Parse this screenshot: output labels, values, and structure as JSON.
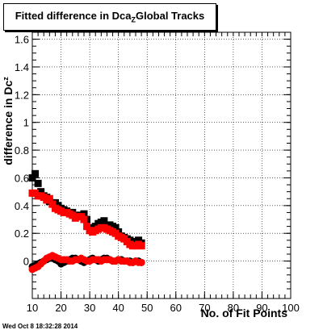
{
  "chart_data": {
    "type": "scatter",
    "title": "Fitted difference in Dca_{Z}Global Tracks",
    "title_main": "Fitted difference in Dca",
    "title_sub": "Z",
    "title_tail": "Global Tracks",
    "xlabel": "No. of Fit Points",
    "ylabel": "difference in Dc",
    "ylabel_sub": "z",
    "xlim": [
      10,
      100
    ],
    "ylim": [
      -0.27,
      1.65
    ],
    "x_ticks": [
      10,
      20,
      30,
      40,
      50,
      60,
      70,
      80,
      90,
      100
    ],
    "y_ticks": [
      0,
      0.2,
      0.4,
      0.6,
      0.8,
      1,
      1.2,
      1.4,
      1.6
    ],
    "x_tick_labels": [
      "10",
      "20",
      "30",
      "40",
      "50",
      "60",
      "70",
      "80",
      "90",
      "100"
    ],
    "y_tick_labels": [
      "0",
      "0.2",
      "0.4",
      "0.6",
      "0.8",
      "1",
      "1.2",
      "1.4",
      "1.6"
    ],
    "grid": true,
    "colors": {
      "series_black": "#000000",
      "series_red": "#ff0000"
    },
    "x": [
      10,
      11,
      12,
      13,
      14,
      15,
      16,
      17,
      18,
      19,
      20,
      21,
      22,
      23,
      24,
      25,
      26,
      27,
      28,
      29,
      30,
      31,
      32,
      33,
      34,
      35,
      36,
      37,
      38,
      39,
      40,
      41,
      42,
      43,
      44,
      45,
      46,
      47,
      48
    ],
    "series": [
      {
        "marker": "square",
        "color": "#000000",
        "values": [
          0.6,
          0.63,
          0.56,
          0.5,
          0.47,
          0.46,
          0.43,
          0.42,
          0.42,
          0.4,
          0.38,
          0.37,
          0.36,
          0.35,
          0.35,
          0.33,
          0.32,
          0.33,
          0.34,
          0.3,
          0.24,
          0.23,
          0.25,
          0.27,
          0.28,
          0.29,
          0.25,
          0.26,
          0.25,
          0.24,
          0.21,
          0.18,
          0.17,
          0.16,
          0.15,
          0.13,
          0.14,
          0.15,
          0.13
        ]
      },
      {
        "marker": "square",
        "color": "#ff0000",
        "values": [
          0.49,
          0.49,
          0.47,
          0.47,
          0.46,
          0.44,
          0.45,
          0.41,
          0.38,
          0.37,
          0.36,
          0.35,
          0.35,
          0.34,
          0.33,
          0.31,
          0.32,
          0.32,
          0.3,
          0.25,
          0.22,
          0.21,
          0.22,
          0.23,
          0.24,
          0.24,
          0.23,
          0.22,
          0.21,
          0.2,
          0.18,
          0.17,
          0.16,
          0.14,
          0.12,
          0.11,
          0.11,
          0.12,
          0.11
        ]
      },
      {
        "marker": "circle",
        "color": "#000000",
        "values": [
          -0.04,
          -0.03,
          -0.02,
          -0.01,
          0,
          0.01,
          0.02,
          0.02,
          0.01,
          0,
          -0.02,
          -0.01,
          0,
          0.01,
          0.02,
          0.02,
          0.01,
          0,
          -0.01,
          0,
          0.01,
          0.02,
          0.01,
          0,
          0.01,
          0.02,
          0.02,
          0.01,
          0,
          0,
          0.01,
          0.01,
          0,
          0,
          0,
          -0.01,
          0,
          0,
          -0.01
        ]
      },
      {
        "marker": "circle",
        "color": "#ff0000",
        "values": [
          -0.06,
          -0.05,
          -0.04,
          -0.02,
          0,
          0.02,
          0.03,
          0.04,
          0.03,
          0.02,
          0.01,
          0.01,
          0.01,
          0,
          0,
          0.01,
          0.01,
          0.02,
          0.01,
          0,
          0,
          0.01,
          0.01,
          0.01,
          0,
          0.01,
          0.01,
          0.01,
          0,
          0,
          0.01,
          0,
          0,
          0,
          -0.01,
          -0.01,
          0,
          -0.01,
          -0.01
        ]
      }
    ]
  },
  "timestamp": "Wed Oct  8 18:32:28 2014"
}
